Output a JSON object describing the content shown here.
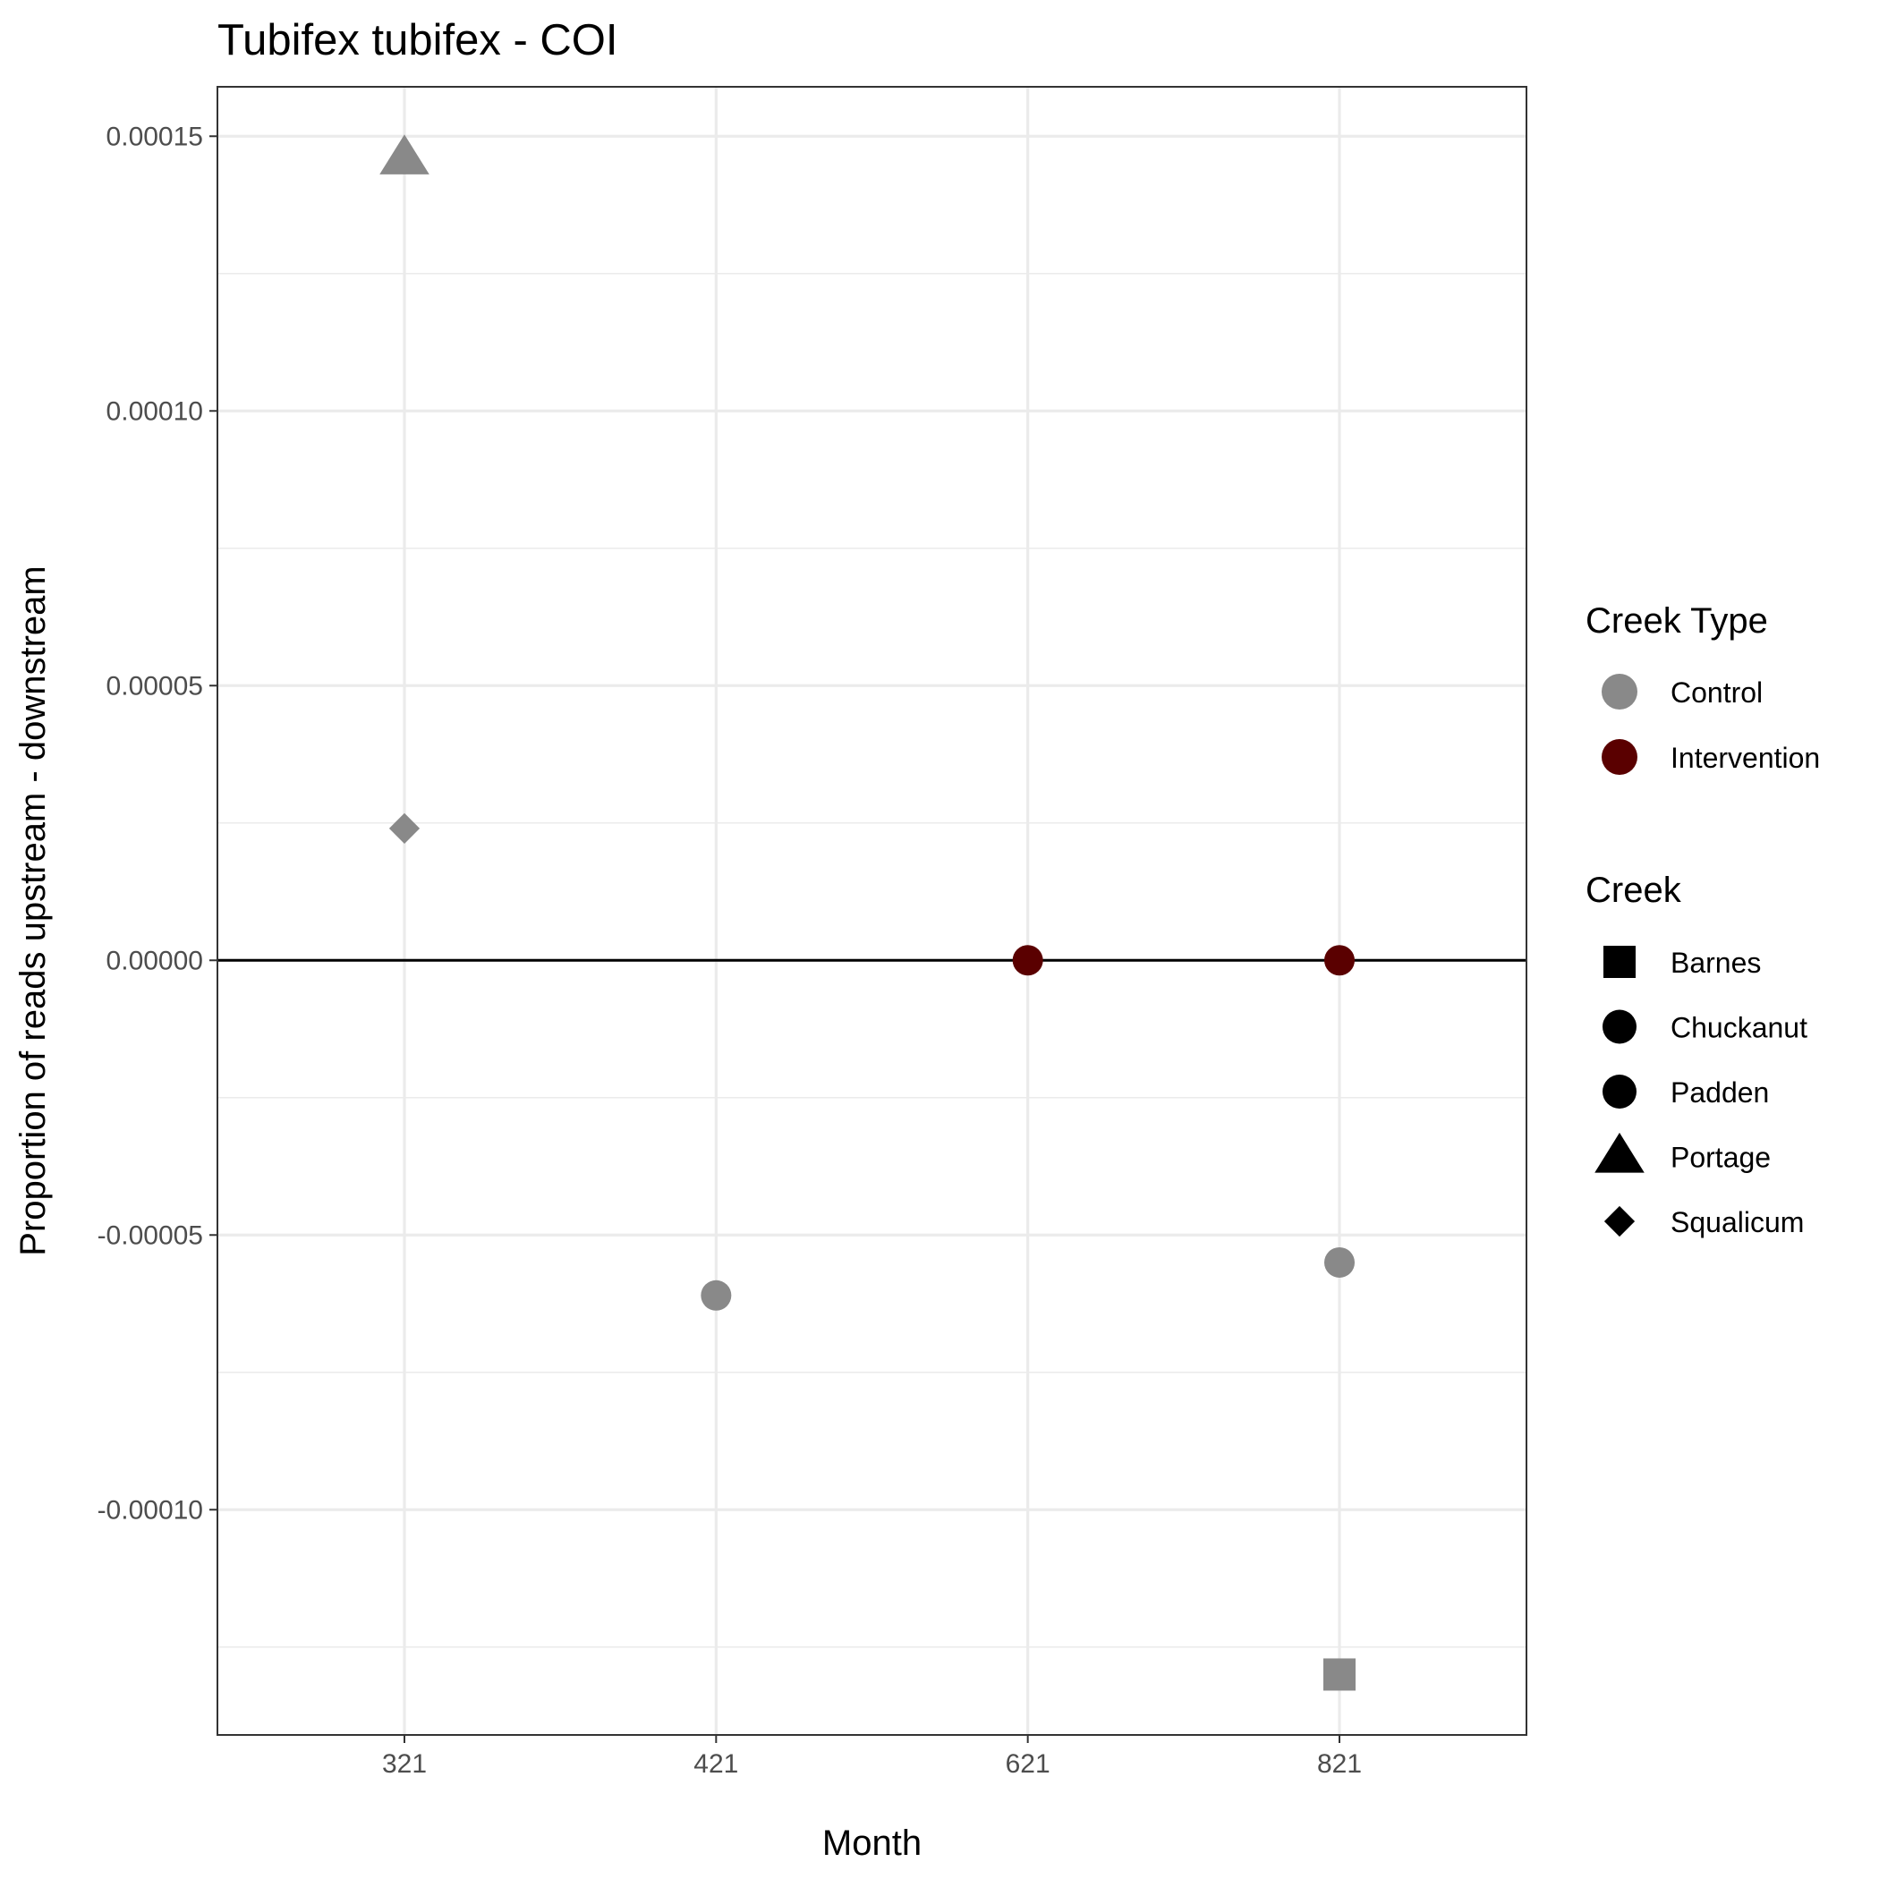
{
  "chart_data": {
    "type": "scatter",
    "title": "Tubifex tubifex - COI",
    "xlabel": "Month",
    "ylabel": "Proportion of reads upstream - downstream",
    "categories": [
      "321",
      "421",
      "621",
      "821"
    ],
    "y_ticks": [
      "0.00015",
      "0.00010",
      "0.00005",
      "0.00000",
      "-0.00005",
      "-0.00010"
    ],
    "y_tick_values": [
      0.00015,
      0.0001,
      5e-05,
      0,
      -5e-05,
      -0.0001
    ],
    "ylim": [
      -0.000141,
      0.000159
    ],
    "grid": true,
    "reference_line_y": 0,
    "legend_position": "right",
    "legend": {
      "creek_type": {
        "title": "Creek Type",
        "items": [
          {
            "label": "Control",
            "color": "#898989"
          },
          {
            "label": "Intervention",
            "color": "#5a0000"
          }
        ]
      },
      "creek": {
        "title": "Creek",
        "items": [
          {
            "label": "Barnes",
            "shape": "square"
          },
          {
            "label": "Chuckanut",
            "shape": "circle"
          },
          {
            "label": "Padden",
            "shape": "circle"
          },
          {
            "label": "Portage",
            "shape": "triangle"
          },
          {
            "label": "Squalicum",
            "shape": "diamond"
          }
        ]
      }
    },
    "points": [
      {
        "month": "321",
        "y": 0.000146,
        "creek": "Portage",
        "creek_type": "Control"
      },
      {
        "month": "321",
        "y": 2.4e-05,
        "creek": "Squalicum",
        "creek_type": "Control"
      },
      {
        "month": "421",
        "y": -6.1e-05,
        "creek": "Chuckanut",
        "creek_type": "Control"
      },
      {
        "month": "621",
        "y": 0.0,
        "creek": "Padden",
        "creek_type": "Intervention"
      },
      {
        "month": "821",
        "y": 0.0,
        "creek": "Padden",
        "creek_type": "Intervention"
      },
      {
        "month": "821",
        "y": -5.5e-05,
        "creek": "Chuckanut",
        "creek_type": "Control"
      },
      {
        "month": "821",
        "y": -0.00013,
        "creek": "Barnes",
        "creek_type": "Control"
      }
    ]
  }
}
